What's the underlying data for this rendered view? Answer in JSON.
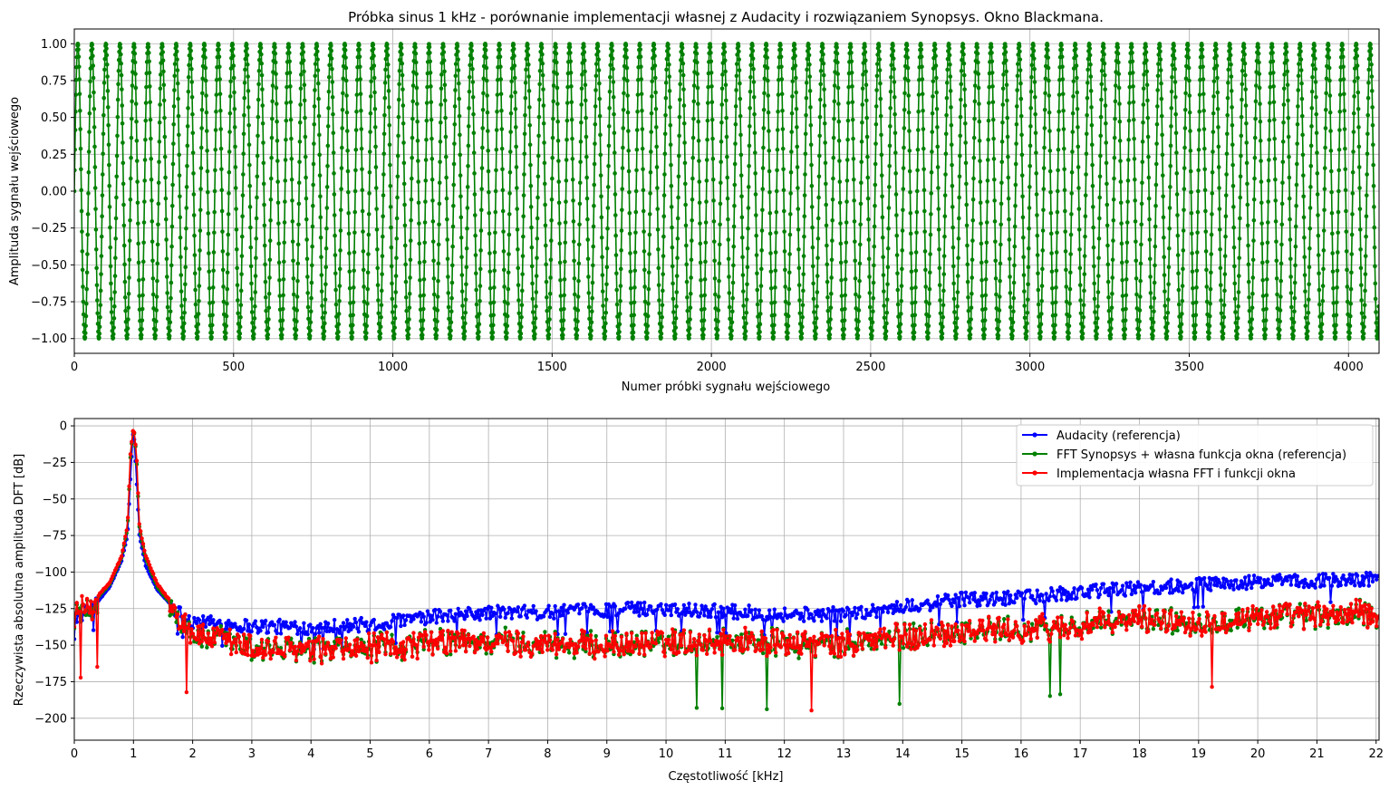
{
  "chart_data": [
    {
      "type": "line",
      "title": "Próbka sinus 1 kHz - porównanie implementacji własnej z Audacity i rozwiązaniem Synopsys. Okno Blackmana.",
      "xlabel": "Numer próbki sygnału wejściowego",
      "ylabel": "Amplituda sygnału wejściowego",
      "xlim": [
        0,
        4096
      ],
      "ylim": [
        -1.1,
        1.1
      ],
      "xticks": [
        0,
        500,
        1000,
        1500,
        2000,
        2500,
        3000,
        3500,
        4000
      ],
      "yticks": [
        1.0,
        0.75,
        0.5,
        0.25,
        0.0,
        -0.25,
        -0.5,
        -0.75,
        -1.0
      ],
      "ytick_labels": [
        "1.00",
        "0.75",
        "0.50",
        "0.25",
        "0.00",
        "−0.25",
        "−0.50",
        "−0.75",
        "−1.00"
      ],
      "grid": true,
      "series": [
        {
          "color": "#008000",
          "marker": "circle",
          "signal": "sine",
          "frequency_khz": 1,
          "sample_rate_khz": 44.1,
          "amplitude": 1.0,
          "n_samples": 4096
        }
      ]
    },
    {
      "type": "line",
      "title": "",
      "xlabel": "Częstotliwość [kHz]",
      "ylabel": "Rzeczywista absolutna amplituda DFT [dB]",
      "xlim": [
        0,
        22.05
      ],
      "ylim": [
        -215,
        5
      ],
      "xticks": [
        0,
        1,
        2,
        3,
        4,
        5,
        6,
        7,
        8,
        9,
        10,
        11,
        12,
        13,
        14,
        15,
        16,
        17,
        18,
        19,
        20,
        21,
        22
      ],
      "yticks": [
        0,
        -25,
        -50,
        -75,
        -100,
        -125,
        -150,
        -175,
        -200
      ],
      "ytick_labels": [
        "0",
        "−25",
        "−50",
        "−75",
        "−100",
        "−125",
        "−150",
        "−175",
        "−200"
      ],
      "grid": true,
      "legend_position": "top-right",
      "series": [
        {
          "name": "Audacity (referencja)",
          "color": "#0000ff",
          "x": [
            0,
            0.3,
            0.6,
            0.8,
            0.9,
            0.95,
            1.0,
            1.05,
            1.1,
            1.2,
            1.4,
            1.7,
            2,
            3,
            4,
            5,
            6,
            7,
            8,
            9,
            10,
            11,
            12,
            13,
            14,
            15,
            16,
            17,
            18,
            19,
            20,
            21,
            22
          ],
          "y": [
            -130,
            -125,
            -110,
            -92,
            -75,
            -35,
            0,
            -35,
            -75,
            -95,
            -112,
            -125,
            -133,
            -136,
            -137,
            -135,
            -130,
            -127,
            -127,
            -125,
            -124,
            -126,
            -128,
            -128,
            -123,
            -118,
            -117,
            -113,
            -110,
            -108,
            -106,
            -105,
            -104
          ],
          "noise": 10
        },
        {
          "name": "FFT Synopsys + własna funkcja okna (referencja)",
          "color": "#008000",
          "x": [
            0,
            0.3,
            0.6,
            0.8,
            0.9,
            0.95,
            1.0,
            1.05,
            1.1,
            1.2,
            1.4,
            1.7,
            2,
            3,
            4,
            5,
            6,
            7,
            8,
            9,
            10,
            11,
            12,
            13,
            14,
            15,
            16,
            17,
            18,
            19,
            20,
            21,
            22
          ],
          "y": [
            -128,
            -122,
            -108,
            -90,
            -70,
            -20,
            0,
            -20,
            -70,
            -90,
            -110,
            -125,
            -140,
            -150,
            -152,
            -150,
            -147,
            -145,
            -147,
            -148,
            -146,
            -145,
            -147,
            -147,
            -142,
            -138,
            -138,
            -135,
            -130,
            -132,
            -128,
            -128,
            -126
          ],
          "noise": 22
        },
        {
          "name": "Implementacja własna FFT i funkcji okna",
          "color": "#ff0000",
          "x": [
            0,
            0.3,
            0.6,
            0.8,
            0.9,
            0.95,
            1.0,
            1.05,
            1.1,
            1.2,
            1.4,
            1.7,
            2,
            3,
            4,
            5,
            6,
            7,
            8,
            9,
            10,
            11,
            12,
            13,
            14,
            15,
            16,
            17,
            18,
            19,
            20,
            21,
            22
          ],
          "y": [
            -127,
            -121,
            -107,
            -89,
            -68,
            -18,
            0,
            -18,
            -68,
            -88,
            -108,
            -124,
            -140,
            -150,
            -152,
            -150,
            -147,
            -145,
            -147,
            -148,
            -146,
            -145,
            -147,
            -147,
            -142,
            -138,
            -138,
            -135,
            -130,
            -132,
            -128,
            -128,
            -126
          ],
          "noise": 22
        }
      ]
    }
  ]
}
